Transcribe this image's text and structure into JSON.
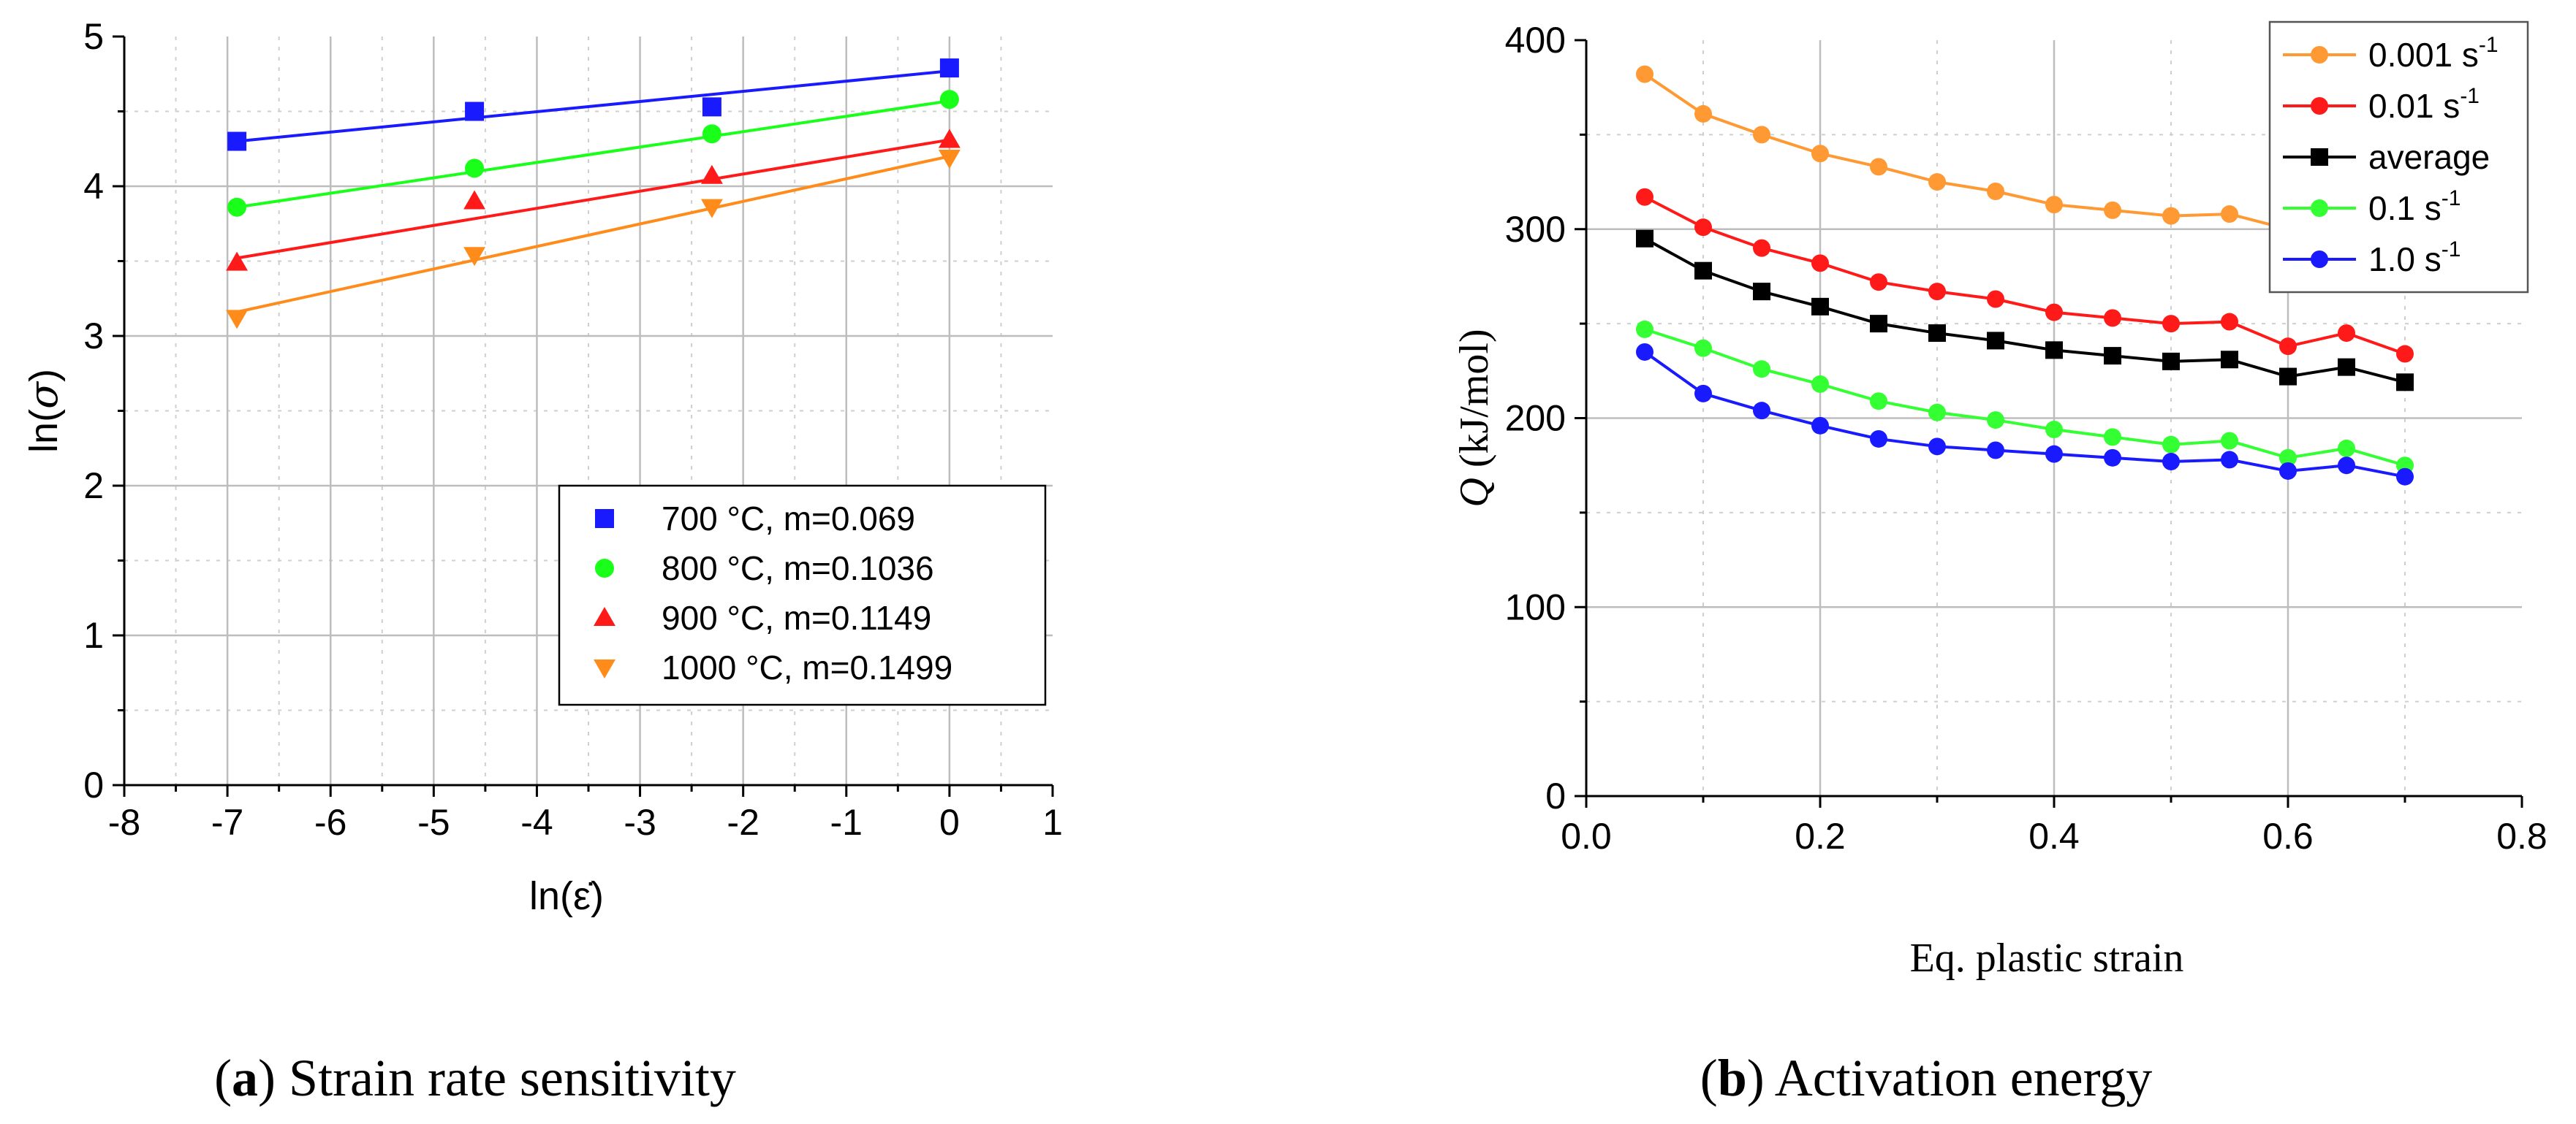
{
  "chart_data": [
    {
      "type": "scatter",
      "xlabel_prefix": "ln(",
      "xlabel_symbol": "ε̇",
      "xlabel_suffix": ")",
      "ylabel_prefix": "ln(",
      "ylabel_symbol": "σ",
      "ylabel_suffix": ")",
      "xlim": [
        -8,
        1
      ],
      "ylim": [
        0,
        5
      ],
      "xticks": [
        "-8",
        "-7",
        "-6",
        "-5",
        "-4",
        "-3",
        "-2",
        "-1",
        "0",
        "1"
      ],
      "yticks": [
        "0",
        "1",
        "2",
        "3",
        "4",
        "5"
      ],
      "grid": true,
      "legend_position": "bottom-right",
      "caption_letter": "a",
      "caption_text": "Strain rate sensitivity",
      "series": [
        {
          "name": "700 °C,   m=0.069",
          "color": "#1a1aff",
          "marker": "square",
          "x": [
            -6.908,
            -4.605,
            -2.303,
            0
          ],
          "y": [
            4.3,
            4.5,
            4.53,
            4.79
          ],
          "fit": [
            [
              -6.908,
              4.3
            ],
            [
              0,
              4.77
            ]
          ]
        },
        {
          "name": "800 °C,   m=0.1036",
          "color": "#1aff1a",
          "marker": "circle",
          "x": [
            -6.908,
            -4.605,
            -2.303,
            0
          ],
          "y": [
            3.86,
            4.12,
            4.35,
            4.58
          ],
          "fit": [
            [
              -6.908,
              3.86
            ],
            [
              0,
              4.57
            ]
          ]
        },
        {
          "name": "900 °C,   m=0.1149",
          "color": "#ff1a1a",
          "marker": "triangle-up",
          "x": [
            -6.908,
            -4.605,
            -2.303,
            0
          ],
          "y": [
            3.49,
            3.9,
            4.07,
            4.31
          ],
          "fit": [
            [
              -6.908,
              3.52
            ],
            [
              0,
              4.31
            ]
          ]
        },
        {
          "name": "1000 °C, m=0.1499",
          "color": "#ff8c1a",
          "marker": "triangle-down",
          "x": [
            -6.908,
            -4.605,
            -2.303,
            0
          ],
          "y": [
            3.12,
            3.54,
            3.86,
            4.19
          ],
          "fit": [
            [
              -6.908,
              3.16
            ],
            [
              0,
              4.2
            ]
          ]
        }
      ]
    },
    {
      "type": "line",
      "xlabel": "Eq. plastic strain",
      "ylabel_symbol": "Q",
      "ylabel_unit": "(kJ/mol)",
      "xlim": [
        0.0,
        0.8
      ],
      "ylim": [
        0,
        400
      ],
      "xticks": [
        "0.0",
        "0.2",
        "0.4",
        "0.6",
        "0.8"
      ],
      "yticks": [
        "0",
        "100",
        "200",
        "300",
        "400"
      ],
      "grid": true,
      "legend_position": "top-right",
      "caption_letter": "b",
      "caption_text": "Activation energy",
      "x": [
        0.05,
        0.1,
        0.15,
        0.2,
        0.25,
        0.3,
        0.35,
        0.4,
        0.45,
        0.5,
        0.55,
        0.6,
        0.65,
        0.7
      ],
      "series": [
        {
          "name": "0.001 s",
          "sup": "-1",
          "color": "#ff9933",
          "marker": "circle",
          "values": [
            382,
            361,
            350,
            340,
            333,
            325,
            320,
            313,
            310,
            307,
            308,
            300,
            305,
            297
          ]
        },
        {
          "name": "0.01 s",
          "sup": "-1",
          "color": "#ff1a1a",
          "marker": "circle",
          "values": [
            317,
            301,
            290,
            282,
            272,
            267,
            263,
            256,
            253,
            250,
            251,
            238,
            245,
            234
          ]
        },
        {
          "name": "average",
          "sup": "",
          "color": "#000000",
          "marker": "square",
          "values": [
            295,
            278,
            267,
            259,
            250,
            245,
            241,
            236,
            233,
            230,
            231,
            222,
            227,
            219
          ]
        },
        {
          "name": "0.1 s",
          "sup": "-1",
          "color": "#33ff33",
          "marker": "circle",
          "values": [
            247,
            237,
            226,
            218,
            209,
            203,
            199,
            194,
            190,
            186,
            188,
            179,
            184,
            175
          ]
        },
        {
          "name": "1.0 s",
          "sup": "-1",
          "color": "#1a1aff",
          "marker": "circle",
          "values": [
            235,
            213,
            204,
            196,
            189,
            185,
            183,
            181,
            179,
            177,
            178,
            172,
            175,
            169
          ]
        }
      ]
    }
  ]
}
